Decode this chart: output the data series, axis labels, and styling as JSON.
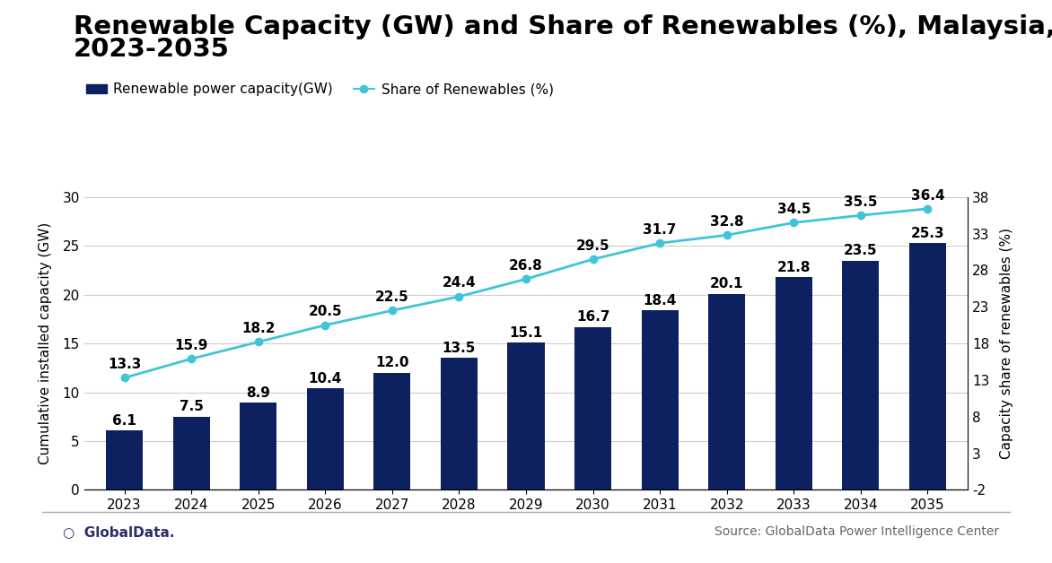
{
  "title_line1": "Renewable Capacity (GW) and Share of Renewables (%), Malaysia,",
  "title_line2": "2023-2035",
  "years": [
    2023,
    2024,
    2025,
    2026,
    2027,
    2028,
    2029,
    2030,
    2031,
    2032,
    2033,
    2034,
    2035
  ],
  "bar_values": [
    6.1,
    7.5,
    8.9,
    10.4,
    12.0,
    13.5,
    15.1,
    16.7,
    18.4,
    20.1,
    21.8,
    23.5,
    25.3
  ],
  "line_values": [
    13.3,
    15.9,
    18.2,
    20.5,
    22.5,
    24.4,
    26.8,
    29.5,
    31.7,
    32.8,
    34.5,
    35.5,
    36.4
  ],
  "bar_color": "#0d2060",
  "line_color": "#40c4d8",
  "bar_label": "Renewable power capacity(GW)",
  "line_label": "Share of Renewables (%)",
  "ylabel_left": "Cumulative installed capacity (GW)",
  "ylabel_right": "Capacity share of renewables (%)",
  "ylim_left": [
    0,
    30
  ],
  "ylim_right": [
    -2,
    38
  ],
  "yticks_left": [
    0,
    5,
    10,
    15,
    20,
    25,
    30
  ],
  "yticks_right": [
    -2,
    3,
    8,
    13,
    18,
    23,
    28,
    33,
    38
  ],
  "background_color": "#ffffff",
  "source_text": "Source: GlobalData Power Intelligence Center",
  "globaldata_text": "GlobalData.",
  "title_fontsize": 21,
  "label_fontsize": 11,
  "tick_fontsize": 11,
  "annotation_fontsize": 11,
  "legend_fontsize": 11
}
